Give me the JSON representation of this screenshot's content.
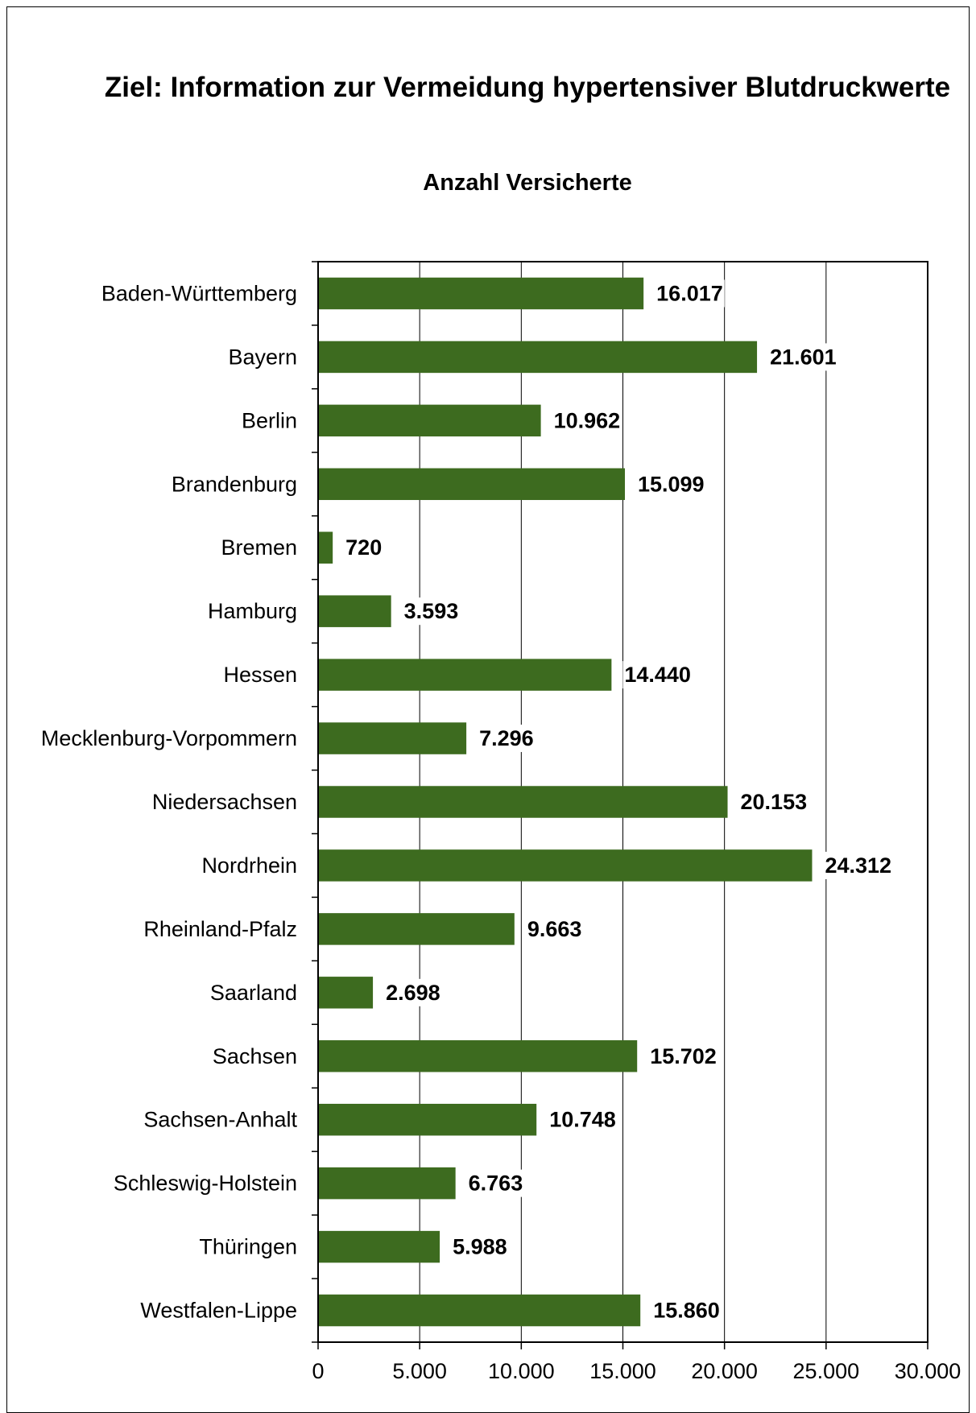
{
  "chart_data": {
    "type": "bar",
    "orientation": "horizontal",
    "title": "Ziel: Information zur Vermeidung hypertensiver Blutdruckwerte",
    "subtitle": "Anzahl Versicherte",
    "xlabel": "",
    "ylabel": "",
    "xlim": [
      0,
      30000
    ],
    "ticks": [
      0,
      5000,
      10000,
      15000,
      20000,
      25000,
      30000
    ],
    "tick_labels": [
      "0",
      "5.000",
      "10.000",
      "15.000",
      "20.000",
      "25.000",
      "30.000"
    ],
    "grid": "vertical",
    "legend": "none",
    "bar_color": "#3d6b1f",
    "categories": [
      "Baden-Württemberg",
      "Bayern",
      "Berlin",
      "Brandenburg",
      "Bremen",
      "Hamburg",
      "Hessen",
      "Mecklenburg-Vorpommern",
      "Niedersachsen",
      "Nordrhein",
      "Rheinland-Pfalz",
      "Saarland",
      "Sachsen",
      "Sachsen-Anhalt",
      "Schleswig-Holstein",
      "Thüringen",
      "Westfalen-Lippe"
    ],
    "values": [
      16017,
      21601,
      10962,
      15099,
      720,
      3593,
      14440,
      7296,
      20153,
      24312,
      9663,
      2698,
      15702,
      10748,
      6763,
      5988,
      15860
    ],
    "value_labels": [
      "16.017",
      "21.601",
      "10.962",
      "15.099",
      "720",
      "3.593",
      "14.440",
      "7.296",
      "20.153",
      "24.312",
      "9.663",
      "2.698",
      "15.702",
      "10.748",
      "6.763",
      "5.988",
      "15.860"
    ]
  }
}
